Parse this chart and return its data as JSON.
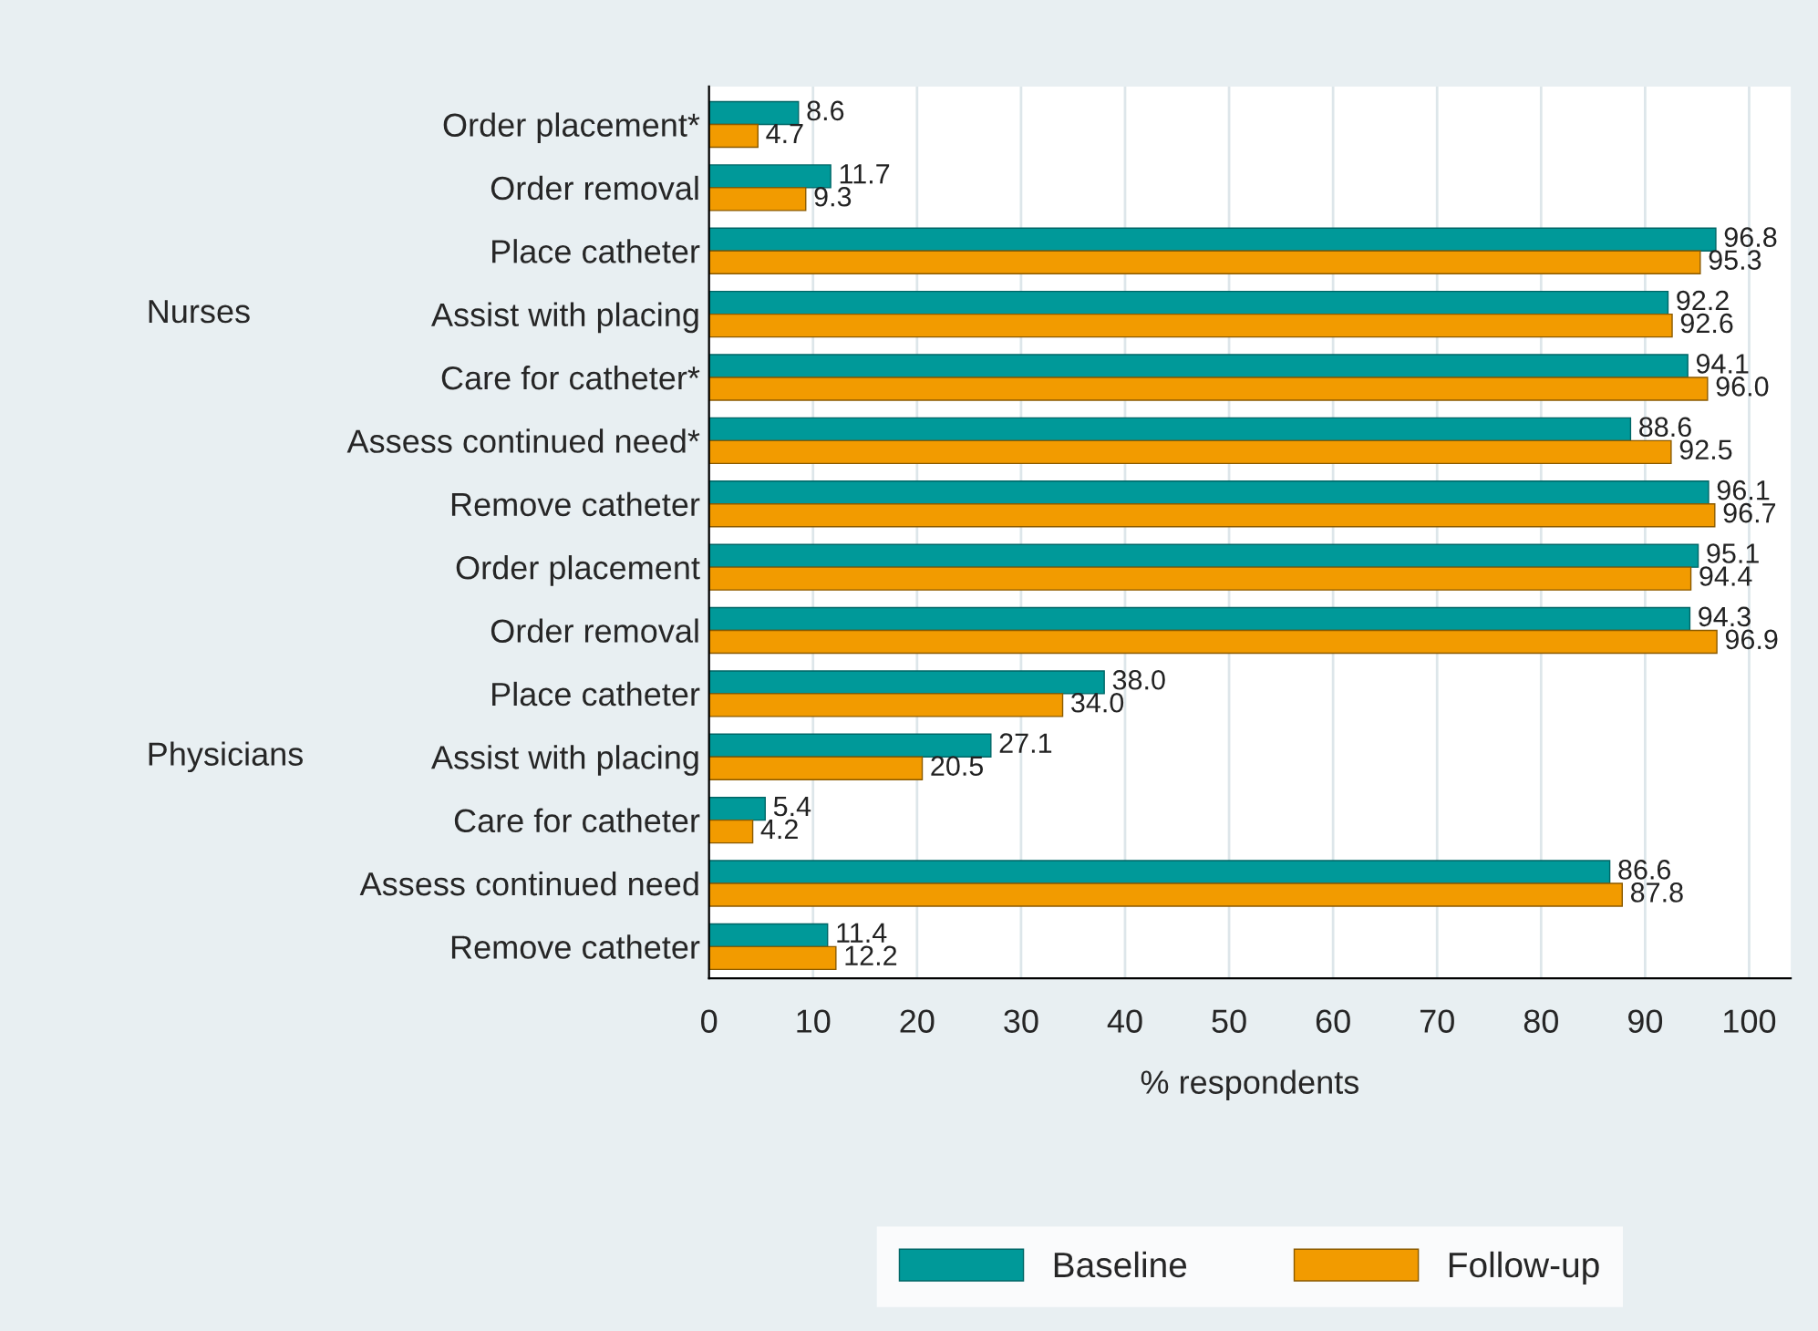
{
  "chart_data": {
    "type": "bar",
    "orientation": "horizontal",
    "xlabel": "% respondents",
    "categories": [
      "Order placement*",
      "Order removal",
      "Place catheter",
      "Assist with placing",
      "Care for catheter*",
      "Assess continued need*",
      "Remove catheter",
      "Order placement",
      "Order removal",
      "Place catheter",
      "Assist with placing",
      "Care for catheter",
      "Assess continued need",
      "Remove catheter"
    ],
    "series": [
      {
        "name": "Baseline",
        "color": "#009999",
        "values": [
          8.6,
          11.7,
          96.8,
          92.2,
          94.1,
          88.6,
          96.1,
          95.1,
          94.3,
          38.0,
          27.1,
          5.4,
          86.6,
          11.4
        ],
        "value_labels": [
          "8.6",
          "11.7",
          "96.8",
          "92.2",
          "94.1",
          "88.6",
          "96.1",
          "95.1",
          "94.3",
          "38.0",
          "27.1",
          "5.4",
          "86.6",
          "11.4"
        ]
      },
      {
        "name": "Follow-up",
        "color": "#f29b00",
        "values": [
          4.7,
          9.3,
          95.3,
          92.6,
          96.0,
          92.5,
          96.7,
          94.4,
          96.9,
          34.0,
          20.5,
          4.2,
          87.8,
          12.2
        ],
        "value_labels": [
          "4.7",
          "9.3",
          "95.3",
          "92.6",
          "96.0",
          "92.5",
          "96.7",
          "94.4",
          "96.9",
          "34.0",
          "20.5",
          "4.2",
          "87.8",
          "12.2"
        ]
      }
    ],
    "annotations": [
      "Nurses",
      "Physicians"
    ],
    "xlim": [
      0,
      104
    ],
    "xticks": [
      0,
      10,
      20,
      30,
      40,
      50,
      60,
      70,
      80,
      90,
      100
    ],
    "grid": "x",
    "legend": "bottom"
  }
}
